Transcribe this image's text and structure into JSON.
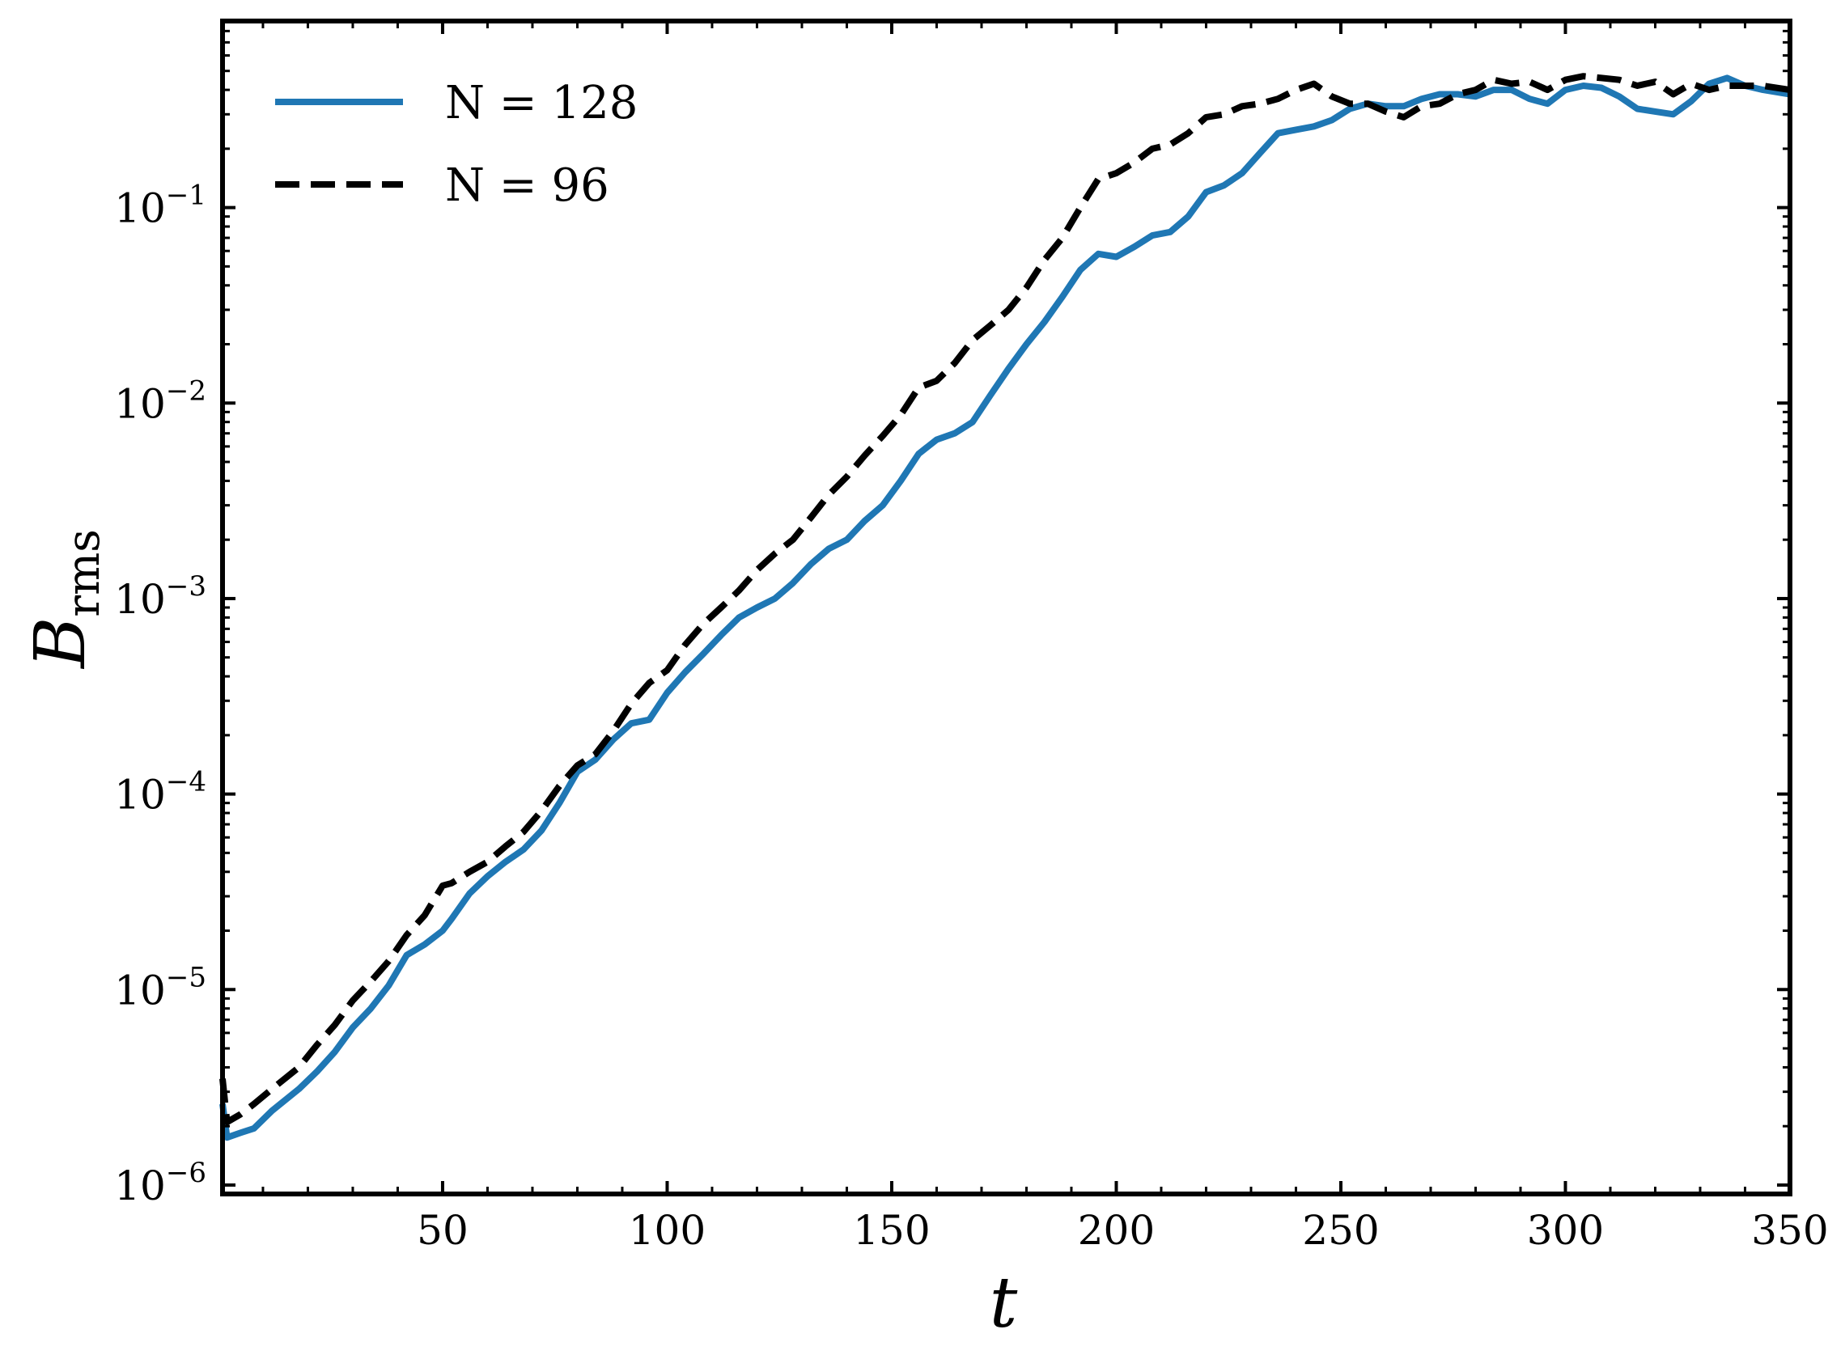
{
  "chart_data": {
    "type": "line",
    "title": "",
    "xlabel": "t",
    "ylabel": {
      "main": "B",
      "sub": "rms"
    },
    "xlim": [
      1,
      350
    ],
    "ylim": [
      9e-07,
      0.9
    ],
    "yscale": "log",
    "xticks": [
      50,
      100,
      150,
      200,
      250,
      300,
      350
    ],
    "xtick_labels": [
      "50",
      "100",
      "150",
      "200",
      "250",
      "300",
      "350"
    ],
    "yticks": [
      1e-06,
      1e-05,
      0.0001,
      0.001,
      0.01,
      0.1
    ],
    "ytick_labels": [
      {
        "base": "10",
        "exp": "−6"
      },
      {
        "base": "10",
        "exp": "−5"
      },
      {
        "base": "10",
        "exp": "−4"
      },
      {
        "base": "10",
        "exp": "−3"
      },
      {
        "base": "10",
        "exp": "−2"
      },
      {
        "base": "10",
        "exp": "−1"
      }
    ],
    "grid": false,
    "legend_position": "top-left",
    "series": [
      {
        "name": "N = 128",
        "color": "#1f77b4",
        "style": "solid",
        "x": [
          1,
          2,
          5,
          8,
          12,
          18,
          22,
          26,
          30,
          34,
          38,
          42,
          46,
          50,
          52,
          56,
          60,
          64,
          68,
          72,
          76,
          80,
          84,
          88,
          92,
          96,
          100,
          104,
          108,
          112,
          116,
          120,
          124,
          128,
          132,
          136,
          140,
          144,
          148,
          152,
          156,
          160,
          164,
          168,
          172,
          176,
          180,
          184,
          188,
          192,
          196,
          200,
          204,
          208,
          212,
          216,
          220,
          224,
          228,
          232,
          236,
          240,
          244,
          248,
          252,
          256,
          260,
          264,
          268,
          272,
          276,
          280,
          284,
          288,
          292,
          296,
          300,
          304,
          308,
          312,
          316,
          320,
          324,
          328,
          332,
          336,
          340,
          344,
          350
        ],
        "y": [
          2.6e-06,
          1.75e-06,
          1.85e-06,
          1.95e-06,
          2.4e-06,
          3.1e-06,
          3.8e-06,
          4.8e-06,
          6.4e-06,
          8e-06,
          1.05e-05,
          1.5e-05,
          1.7e-05,
          2e-05,
          2.3e-05,
          3.1e-05,
          3.8e-05,
          4.5e-05,
          5.2e-05,
          6.5e-05,
          9e-05,
          0.00013,
          0.00015,
          0.00019,
          0.00023,
          0.00024,
          0.00033,
          0.00042,
          0.00052,
          0.00065,
          0.0008,
          0.0009,
          0.001,
          0.0012,
          0.0015,
          0.0018,
          0.002,
          0.0025,
          0.003,
          0.004,
          0.0055,
          0.0065,
          0.007,
          0.008,
          0.011,
          0.015,
          0.02,
          0.026,
          0.035,
          0.048,
          0.058,
          0.056,
          0.063,
          0.072,
          0.075,
          0.09,
          0.12,
          0.13,
          0.15,
          0.19,
          0.24,
          0.25,
          0.26,
          0.28,
          0.32,
          0.34,
          0.33,
          0.33,
          0.36,
          0.38,
          0.38,
          0.37,
          0.4,
          0.4,
          0.36,
          0.34,
          0.4,
          0.42,
          0.41,
          0.37,
          0.32,
          0.31,
          0.3,
          0.35,
          0.43,
          0.46,
          0.42,
          0.4,
          0.38
        ]
      },
      {
        "name": "N = 96",
        "color": "#000000",
        "style": "dashed",
        "x": [
          1,
          2,
          5,
          8,
          12,
          18,
          22,
          26,
          30,
          34,
          38,
          42,
          46,
          50,
          52,
          56,
          60,
          64,
          68,
          72,
          76,
          80,
          84,
          88,
          92,
          96,
          100,
          104,
          108,
          112,
          116,
          120,
          124,
          128,
          132,
          136,
          140,
          144,
          148,
          152,
          156,
          160,
          164,
          168,
          172,
          176,
          180,
          184,
          188,
          192,
          196,
          200,
          204,
          208,
          212,
          216,
          220,
          224,
          228,
          232,
          236,
          240,
          244,
          248,
          252,
          256,
          260,
          264,
          268,
          272,
          276,
          280,
          284,
          288,
          292,
          296,
          300,
          304,
          308,
          312,
          316,
          320,
          324,
          328,
          332,
          336,
          340,
          344,
          350
        ],
        "y": [
          3.5e-06,
          2.1e-06,
          2.3e-06,
          2.6e-06,
          3.1e-06,
          4e-06,
          5.2e-06,
          6.6e-06,
          8.8e-06,
          1.1e-05,
          1.4e-05,
          1.9e-05,
          2.4e-05,
          3.4e-05,
          3.5e-05,
          4e-05,
          4.5e-05,
          5.4e-05,
          6.4e-05,
          8.2e-05,
          0.00011,
          0.00014,
          0.00016,
          0.00021,
          0.00029,
          0.00037,
          0.00043,
          0.00058,
          0.00074,
          0.0009,
          0.0011,
          0.0014,
          0.0017,
          0.002,
          0.0026,
          0.0034,
          0.0042,
          0.0054,
          0.0068,
          0.0087,
          0.012,
          0.013,
          0.016,
          0.021,
          0.025,
          0.03,
          0.039,
          0.054,
          0.07,
          0.1,
          0.14,
          0.15,
          0.17,
          0.2,
          0.21,
          0.24,
          0.29,
          0.3,
          0.33,
          0.34,
          0.36,
          0.4,
          0.43,
          0.37,
          0.34,
          0.34,
          0.31,
          0.29,
          0.33,
          0.34,
          0.38,
          0.4,
          0.45,
          0.43,
          0.44,
          0.4,
          0.45,
          0.47,
          0.46,
          0.45,
          0.42,
          0.44,
          0.38,
          0.43,
          0.4,
          0.42,
          0.42,
          0.42,
          0.4
        ]
      }
    ]
  }
}
